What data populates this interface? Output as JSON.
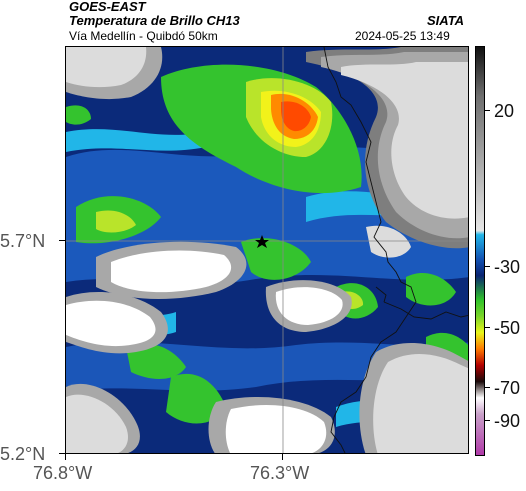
{
  "header": {
    "satellite": "GOES-EAST",
    "product": "Temperatura de Brillo CH13",
    "route": "Vía Medellín - Quibdó 50km",
    "agency": "SIATA",
    "timestamp": "2024-05-25 13:49"
  },
  "axes": {
    "lat_ticks": [
      "5.7°N",
      "5.2°N"
    ],
    "lon_ticks": [
      "76.8°W",
      "76.3°W"
    ]
  },
  "colorbar": {
    "ticks": [
      "20",
      "-30",
      "-50",
      "-70",
      "-90"
    ],
    "colors": {
      "gray_top": "#101010",
      "gray_light": "#e6e6e6",
      "cyan": "#21b6e8",
      "blue": "#1352b3",
      "navy": "#0a2472",
      "green": "#2fc22a",
      "yellow": "#e8f51a",
      "orange": "#ff7a00",
      "red": "#b30000",
      "black": "#1a0a0a",
      "magenta": "#b03aa8"
    }
  },
  "map": {
    "marker": "star-icon",
    "colors": {
      "white": "#ffffff",
      "light_gray": "#dcdcdc",
      "mid_gray": "#a8a8a8",
      "dark_gray": "#7e7e7e",
      "cyan": "#21b6e8",
      "blue": "#1f62c8",
      "navy": "#0b2a7a",
      "green": "#34c32e",
      "yellow_green": "#b9e42a",
      "yellow": "#f2f21a",
      "orange": "#ff8a00",
      "red_orange": "#ff4a00"
    }
  }
}
